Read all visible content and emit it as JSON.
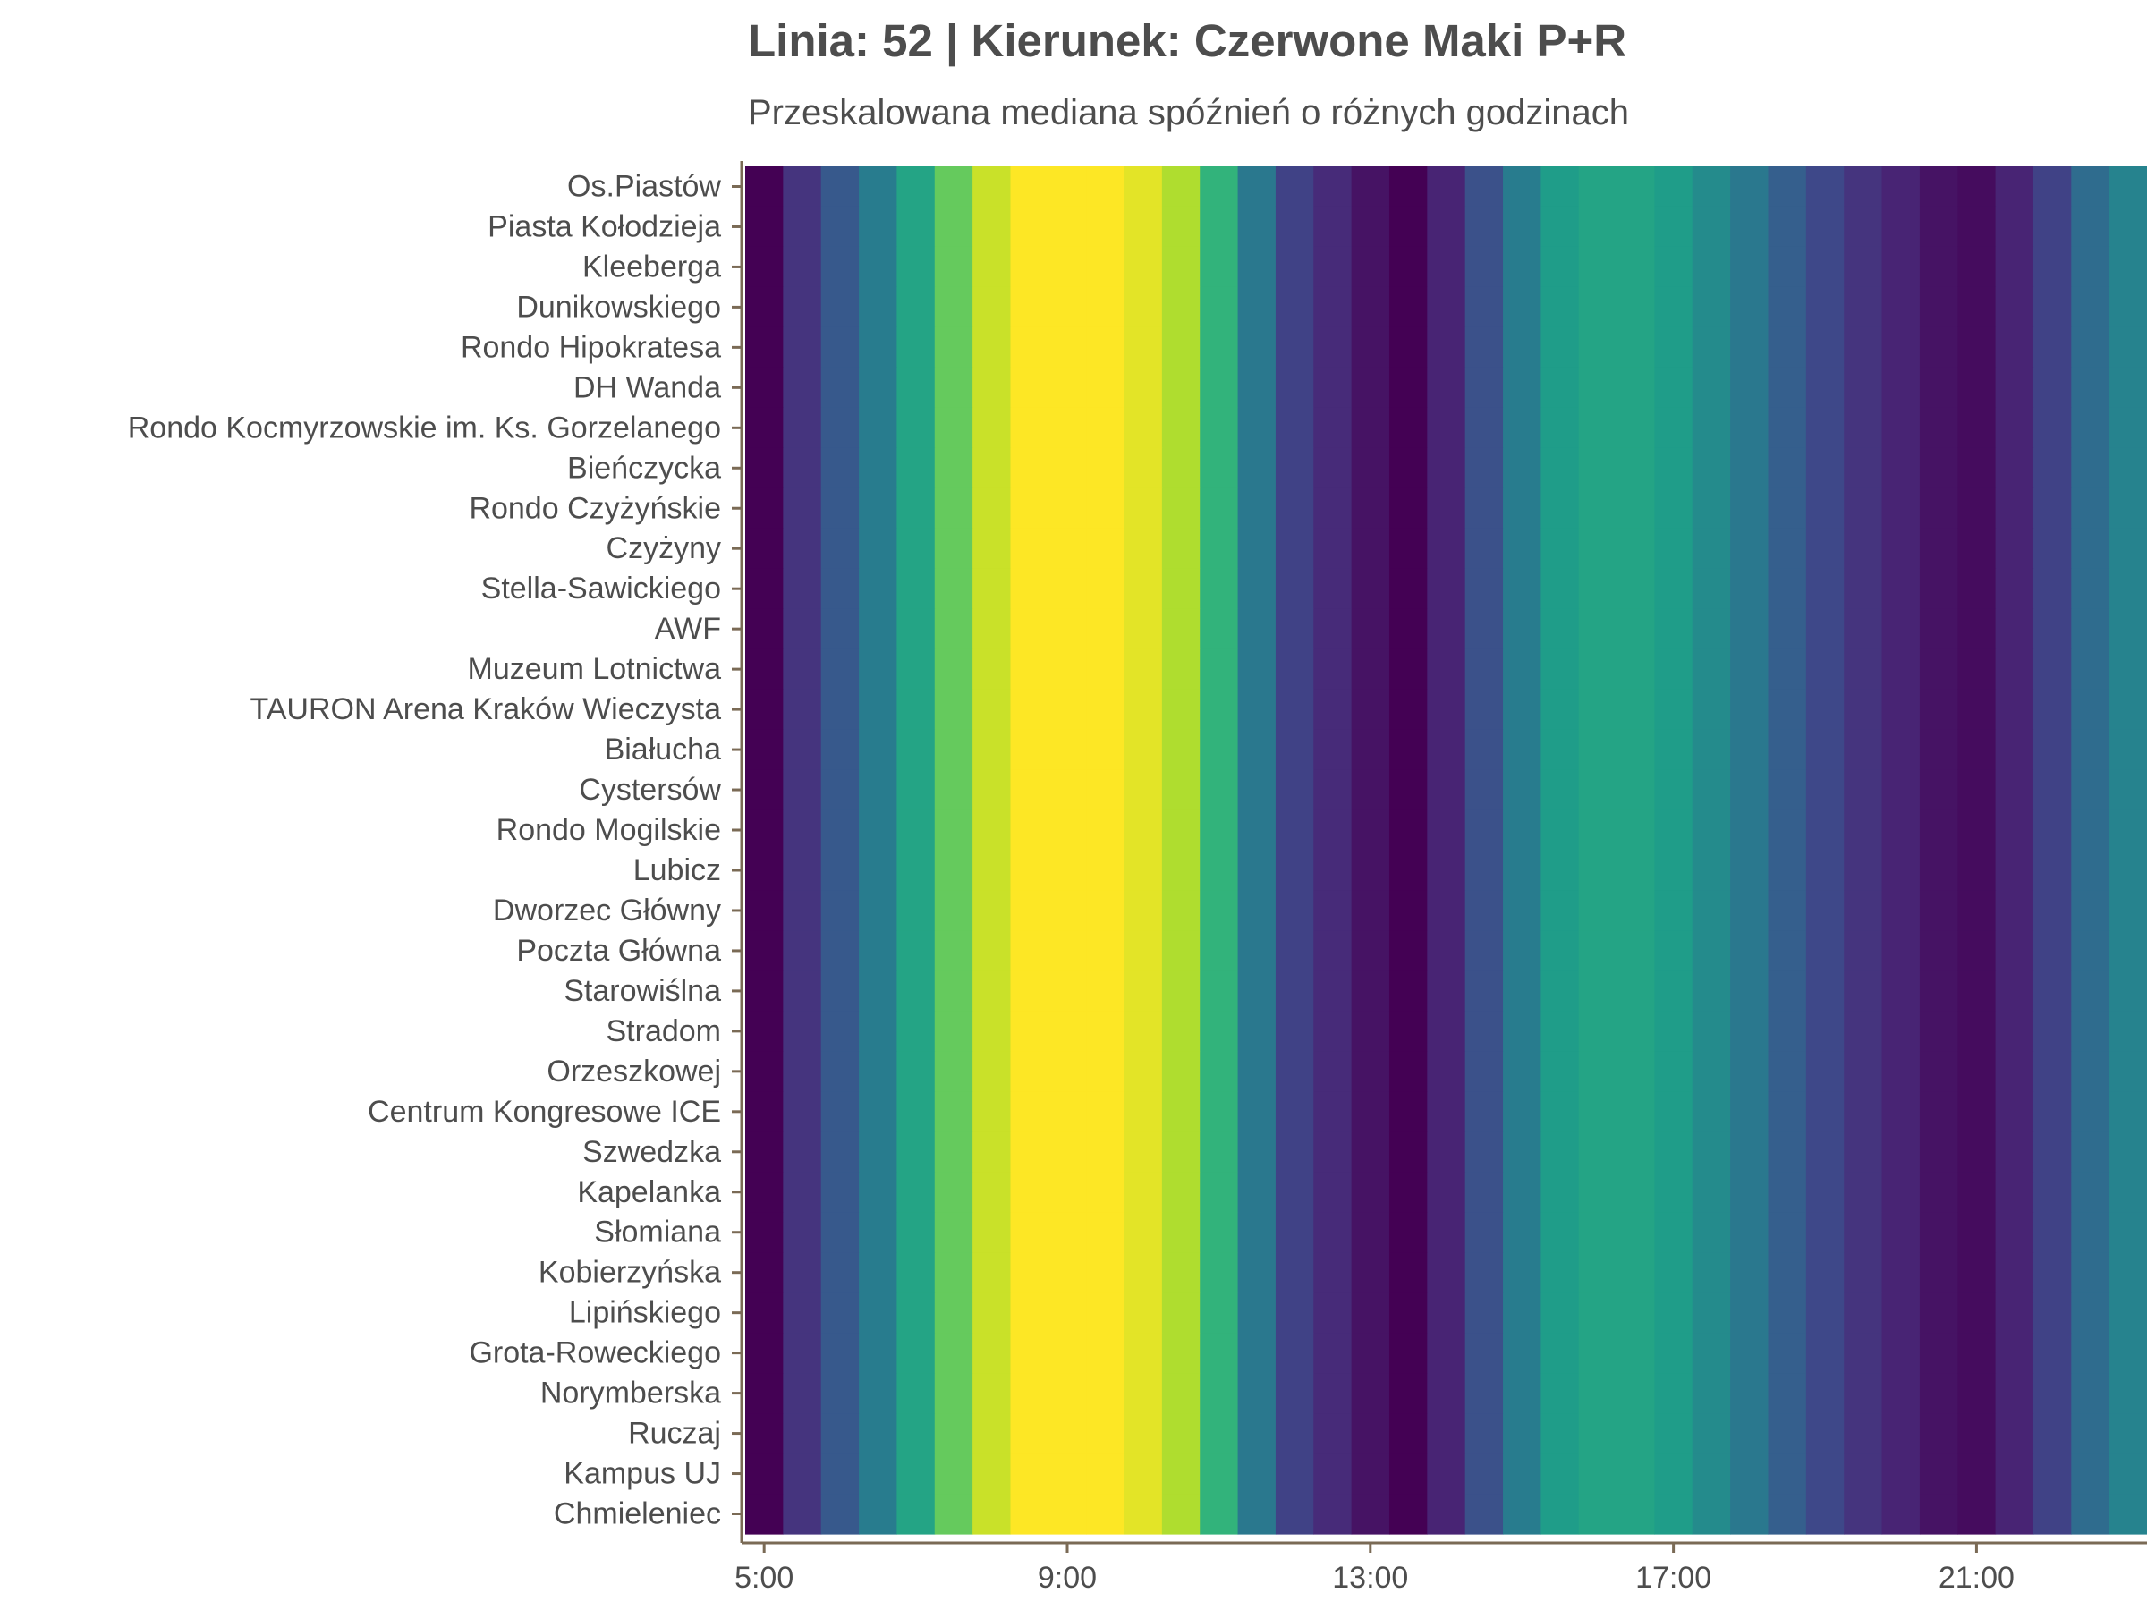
{
  "chart_data": {
    "type": "heatmap",
    "title": "Linia: 52 | Kierunek: Czerwone Maki P+R",
    "subtitle": "Przeskalowana mediana spóźnień o różnych godzinach",
    "xlabel": "",
    "ylabel": "",
    "colorscale": "viridis",
    "x": [
      5,
      5.5,
      6,
      6.5,
      7,
      7.5,
      8,
      8.5,
      9,
      9.5,
      10,
      10.5,
      11,
      11.5,
      12,
      12.5,
      13,
      13.5,
      14,
      14.5,
      15,
      15.5,
      16,
      16.5,
      17,
      17.5,
      18,
      18.5,
      19,
      19.5,
      20,
      20.5,
      21,
      21.5,
      22,
      22.5,
      23
    ],
    "x_ticks": [
      5,
      9,
      13,
      17,
      21
    ],
    "x_tick_labels": [
      "5:00",
      "9:00",
      "13:00",
      "17:00",
      "21:00"
    ],
    "stops": [
      "Os.Piastów",
      "Piasta Kołodzieja",
      "Kleeberga",
      "Dunikowskiego",
      "Rondo Hipokratesa",
      "DH Wanda",
      "Rondo Kocmyrzowskie im. Ks. Gorzelanego",
      "Bieńczycka",
      "Rondo Czyżyńskie",
      "Czyżyny",
      "Stella-Sawickiego",
      "AWF",
      "Muzeum Lotnictwa",
      "TAURON Arena Kraków Wieczysta",
      "Białucha",
      "Cystersów",
      "Rondo Mogilskie",
      "Lubicz",
      "Dworzec Główny",
      "Poczta Główna",
      "Starowiślna",
      "Stradom",
      "Orzeszkowej",
      "Centrum Kongresowe ICE",
      "Szwedzka",
      "Kapelanka",
      "Słomiana",
      "Kobierzyńska",
      "Lipińskiego",
      "Grota-Roweckiego",
      "Norymberska",
      "Ruczaj",
      "Kampus UJ",
      "Chmieleniec"
    ],
    "values": [
      [
        0.0,
        0.15,
        0.28,
        0.42,
        0.58,
        0.76,
        0.92,
        1.0,
        1.0,
        1.0,
        0.96,
        0.88,
        0.65,
        0.4,
        0.2,
        0.12,
        0.05,
        0.0,
        0.1,
        0.25,
        0.42,
        0.55,
        0.58,
        0.58,
        0.55,
        0.48,
        0.4,
        0.3,
        0.22,
        0.15,
        0.1,
        0.05,
        0.03,
        0.1,
        0.2,
        0.35,
        0.45
      ],
      [
        0.0,
        0.15,
        0.28,
        0.42,
        0.58,
        0.76,
        0.92,
        1.0,
        1.0,
        1.0,
        0.96,
        0.88,
        0.65,
        0.4,
        0.2,
        0.12,
        0.05,
        0.0,
        0.1,
        0.25,
        0.42,
        0.55,
        0.58,
        0.58,
        0.55,
        0.48,
        0.4,
        0.3,
        0.22,
        0.15,
        0.1,
        0.05,
        0.03,
        0.1,
        0.2,
        0.35,
        0.45
      ],
      [
        0.0,
        0.15,
        0.28,
        0.42,
        0.58,
        0.76,
        0.92,
        1.0,
        1.0,
        1.0,
        0.96,
        0.88,
        0.65,
        0.4,
        0.2,
        0.12,
        0.05,
        0.0,
        0.1,
        0.25,
        0.42,
        0.55,
        0.58,
        0.58,
        0.55,
        0.48,
        0.4,
        0.3,
        0.22,
        0.15,
        0.1,
        0.05,
        0.03,
        0.1,
        0.2,
        0.35,
        0.45
      ],
      [
        0.0,
        0.15,
        0.28,
        0.42,
        0.58,
        0.76,
        0.92,
        1.0,
        1.0,
        1.0,
        0.96,
        0.88,
        0.65,
        0.4,
        0.2,
        0.12,
        0.05,
        0.0,
        0.1,
        0.25,
        0.42,
        0.55,
        0.58,
        0.58,
        0.55,
        0.48,
        0.4,
        0.3,
        0.22,
        0.15,
        0.1,
        0.05,
        0.03,
        0.1,
        0.2,
        0.35,
        0.45
      ],
      [
        0.0,
        0.15,
        0.28,
        0.42,
        0.58,
        0.76,
        0.92,
        1.0,
        1.0,
        1.0,
        0.96,
        0.88,
        0.65,
        0.4,
        0.2,
        0.12,
        0.05,
        0.0,
        0.1,
        0.25,
        0.42,
        0.55,
        0.58,
        0.58,
        0.55,
        0.48,
        0.4,
        0.3,
        0.22,
        0.15,
        0.1,
        0.05,
        0.03,
        0.1,
        0.2,
        0.35,
        0.45
      ],
      [
        0.0,
        0.15,
        0.28,
        0.42,
        0.58,
        0.76,
        0.92,
        1.0,
        1.0,
        1.0,
        0.96,
        0.88,
        0.65,
        0.4,
        0.2,
        0.12,
        0.05,
        0.0,
        0.1,
        0.25,
        0.42,
        0.55,
        0.58,
        0.58,
        0.55,
        0.48,
        0.4,
        0.3,
        0.22,
        0.15,
        0.1,
        0.05,
        0.03,
        0.1,
        0.2,
        0.35,
        0.45
      ],
      [
        0.0,
        0.15,
        0.28,
        0.42,
        0.58,
        0.76,
        0.92,
        1.0,
        1.0,
        1.0,
        0.96,
        0.88,
        0.65,
        0.4,
        0.2,
        0.12,
        0.05,
        0.0,
        0.1,
        0.25,
        0.42,
        0.55,
        0.58,
        0.58,
        0.55,
        0.48,
        0.4,
        0.3,
        0.22,
        0.15,
        0.1,
        0.05,
        0.03,
        0.1,
        0.2,
        0.35,
        0.45
      ],
      [
        0.0,
        0.15,
        0.28,
        0.42,
        0.58,
        0.76,
        0.92,
        1.0,
        1.0,
        1.0,
        0.96,
        0.88,
        0.65,
        0.4,
        0.2,
        0.12,
        0.05,
        0.0,
        0.1,
        0.25,
        0.42,
        0.55,
        0.58,
        0.58,
        0.55,
        0.48,
        0.4,
        0.3,
        0.22,
        0.15,
        0.1,
        0.05,
        0.03,
        0.1,
        0.2,
        0.35,
        0.45
      ],
      [
        0.0,
        0.15,
        0.28,
        0.42,
        0.58,
        0.76,
        0.92,
        1.0,
        1.0,
        1.0,
        0.96,
        0.88,
        0.65,
        0.4,
        0.2,
        0.12,
        0.05,
        0.0,
        0.1,
        0.25,
        0.42,
        0.55,
        0.58,
        0.58,
        0.55,
        0.48,
        0.4,
        0.3,
        0.22,
        0.15,
        0.1,
        0.05,
        0.03,
        0.1,
        0.2,
        0.35,
        0.45
      ],
      [
        0.0,
        0.15,
        0.28,
        0.42,
        0.58,
        0.76,
        0.92,
        1.0,
        1.0,
        1.0,
        0.96,
        0.88,
        0.65,
        0.4,
        0.2,
        0.12,
        0.05,
        0.0,
        0.1,
        0.25,
        0.42,
        0.55,
        0.58,
        0.58,
        0.55,
        0.48,
        0.4,
        0.3,
        0.22,
        0.15,
        0.1,
        0.05,
        0.03,
        0.1,
        0.2,
        0.35,
        0.45
      ],
      [
        0.0,
        0.15,
        0.28,
        0.42,
        0.58,
        0.76,
        0.92,
        1.0,
        1.0,
        1.0,
        0.96,
        0.88,
        0.65,
        0.4,
        0.2,
        0.12,
        0.05,
        0.0,
        0.1,
        0.25,
        0.42,
        0.55,
        0.58,
        0.58,
        0.55,
        0.48,
        0.4,
        0.3,
        0.22,
        0.15,
        0.1,
        0.05,
        0.03,
        0.1,
        0.2,
        0.35,
        0.45
      ],
      [
        0.0,
        0.15,
        0.28,
        0.42,
        0.58,
        0.76,
        0.92,
        1.0,
        1.0,
        1.0,
        0.96,
        0.88,
        0.65,
        0.4,
        0.2,
        0.12,
        0.05,
        0.0,
        0.1,
        0.25,
        0.42,
        0.55,
        0.58,
        0.58,
        0.55,
        0.48,
        0.4,
        0.3,
        0.22,
        0.15,
        0.1,
        0.05,
        0.03,
        0.1,
        0.2,
        0.35,
        0.45
      ],
      [
        0.0,
        0.15,
        0.28,
        0.42,
        0.58,
        0.76,
        0.92,
        1.0,
        1.0,
        1.0,
        0.96,
        0.88,
        0.65,
        0.4,
        0.2,
        0.12,
        0.05,
        0.0,
        0.1,
        0.25,
        0.42,
        0.55,
        0.58,
        0.58,
        0.55,
        0.48,
        0.4,
        0.3,
        0.22,
        0.15,
        0.1,
        0.05,
        0.03,
        0.1,
        0.2,
        0.35,
        0.45
      ],
      [
        0.0,
        0.15,
        0.28,
        0.42,
        0.58,
        0.76,
        0.92,
        1.0,
        1.0,
        1.0,
        0.96,
        0.88,
        0.65,
        0.4,
        0.2,
        0.12,
        0.05,
        0.0,
        0.1,
        0.25,
        0.42,
        0.55,
        0.58,
        0.58,
        0.55,
        0.48,
        0.4,
        0.3,
        0.22,
        0.15,
        0.1,
        0.05,
        0.03,
        0.1,
        0.2,
        0.35,
        0.45
      ],
      [
        0.0,
        0.15,
        0.28,
        0.42,
        0.58,
        0.76,
        0.92,
        1.0,
        1.0,
        1.0,
        0.96,
        0.88,
        0.65,
        0.4,
        0.2,
        0.12,
        0.05,
        0.0,
        0.1,
        0.25,
        0.42,
        0.55,
        0.58,
        0.58,
        0.55,
        0.48,
        0.4,
        0.3,
        0.22,
        0.15,
        0.1,
        0.05,
        0.03,
        0.1,
        0.2,
        0.35,
        0.45
      ],
      [
        0.0,
        0.15,
        0.28,
        0.42,
        0.58,
        0.76,
        0.92,
        1.0,
        1.0,
        1.0,
        0.96,
        0.88,
        0.65,
        0.4,
        0.2,
        0.12,
        0.05,
        0.0,
        0.1,
        0.25,
        0.42,
        0.55,
        0.58,
        0.58,
        0.55,
        0.48,
        0.4,
        0.3,
        0.22,
        0.15,
        0.1,
        0.05,
        0.03,
        0.1,
        0.2,
        0.35,
        0.45
      ],
      [
        0.0,
        0.15,
        0.28,
        0.42,
        0.58,
        0.76,
        0.92,
        1.0,
        1.0,
        1.0,
        0.96,
        0.88,
        0.65,
        0.4,
        0.2,
        0.12,
        0.05,
        0.0,
        0.1,
        0.25,
        0.42,
        0.55,
        0.58,
        0.58,
        0.55,
        0.48,
        0.4,
        0.3,
        0.22,
        0.15,
        0.1,
        0.05,
        0.03,
        0.1,
        0.2,
        0.35,
        0.45
      ],
      [
        0.0,
        0.15,
        0.28,
        0.42,
        0.58,
        0.76,
        0.92,
        1.0,
        1.0,
        1.0,
        0.96,
        0.88,
        0.65,
        0.4,
        0.2,
        0.12,
        0.05,
        0.0,
        0.1,
        0.25,
        0.42,
        0.55,
        0.58,
        0.58,
        0.55,
        0.48,
        0.4,
        0.3,
        0.22,
        0.15,
        0.1,
        0.05,
        0.03,
        0.1,
        0.2,
        0.35,
        0.45
      ],
      [
        0.0,
        0.15,
        0.28,
        0.42,
        0.58,
        0.76,
        0.92,
        1.0,
        1.0,
        1.0,
        0.96,
        0.88,
        0.65,
        0.4,
        0.2,
        0.12,
        0.05,
        0.0,
        0.1,
        0.25,
        0.42,
        0.55,
        0.58,
        0.58,
        0.55,
        0.48,
        0.4,
        0.3,
        0.22,
        0.15,
        0.1,
        0.05,
        0.03,
        0.1,
        0.2,
        0.35,
        0.45
      ],
      [
        0.0,
        0.15,
        0.28,
        0.42,
        0.58,
        0.76,
        0.92,
        1.0,
        1.0,
        1.0,
        0.96,
        0.88,
        0.65,
        0.4,
        0.2,
        0.12,
        0.05,
        0.0,
        0.1,
        0.25,
        0.42,
        0.55,
        0.58,
        0.58,
        0.55,
        0.48,
        0.4,
        0.3,
        0.22,
        0.15,
        0.1,
        0.05,
        0.03,
        0.1,
        0.2,
        0.35,
        0.45
      ],
      [
        0.0,
        0.15,
        0.28,
        0.42,
        0.58,
        0.76,
        0.92,
        1.0,
        1.0,
        1.0,
        0.96,
        0.88,
        0.65,
        0.4,
        0.2,
        0.12,
        0.05,
        0.0,
        0.1,
        0.25,
        0.42,
        0.55,
        0.58,
        0.58,
        0.55,
        0.48,
        0.4,
        0.3,
        0.22,
        0.15,
        0.1,
        0.05,
        0.03,
        0.1,
        0.2,
        0.35,
        0.45
      ],
      [
        0.0,
        0.15,
        0.28,
        0.42,
        0.58,
        0.76,
        0.92,
        1.0,
        1.0,
        1.0,
        0.96,
        0.88,
        0.65,
        0.4,
        0.2,
        0.12,
        0.05,
        0.0,
        0.1,
        0.25,
        0.42,
        0.55,
        0.58,
        0.58,
        0.55,
        0.48,
        0.4,
        0.3,
        0.22,
        0.15,
        0.1,
        0.05,
        0.03,
        0.1,
        0.2,
        0.35,
        0.45
      ],
      [
        0.0,
        0.15,
        0.28,
        0.42,
        0.58,
        0.76,
        0.92,
        1.0,
        1.0,
        1.0,
        0.96,
        0.88,
        0.65,
        0.4,
        0.2,
        0.12,
        0.05,
        0.0,
        0.1,
        0.25,
        0.42,
        0.55,
        0.58,
        0.58,
        0.55,
        0.48,
        0.4,
        0.3,
        0.22,
        0.15,
        0.1,
        0.05,
        0.03,
        0.1,
        0.2,
        0.35,
        0.45
      ],
      [
        0.0,
        0.15,
        0.28,
        0.42,
        0.58,
        0.76,
        0.92,
        1.0,
        1.0,
        1.0,
        0.96,
        0.88,
        0.65,
        0.4,
        0.2,
        0.12,
        0.05,
        0.0,
        0.1,
        0.25,
        0.42,
        0.55,
        0.58,
        0.58,
        0.55,
        0.48,
        0.4,
        0.3,
        0.22,
        0.15,
        0.1,
        0.05,
        0.03,
        0.1,
        0.2,
        0.35,
        0.45
      ],
      [
        0.0,
        0.15,
        0.28,
        0.42,
        0.58,
        0.76,
        0.92,
        1.0,
        1.0,
        1.0,
        0.96,
        0.88,
        0.65,
        0.4,
        0.2,
        0.12,
        0.05,
        0.0,
        0.1,
        0.25,
        0.42,
        0.55,
        0.58,
        0.58,
        0.55,
        0.48,
        0.4,
        0.3,
        0.22,
        0.15,
        0.1,
        0.05,
        0.03,
        0.1,
        0.2,
        0.35,
        0.45
      ],
      [
        0.0,
        0.15,
        0.28,
        0.42,
        0.58,
        0.76,
        0.92,
        1.0,
        1.0,
        1.0,
        0.96,
        0.88,
        0.65,
        0.4,
        0.2,
        0.12,
        0.05,
        0.0,
        0.1,
        0.25,
        0.42,
        0.55,
        0.58,
        0.58,
        0.55,
        0.48,
        0.4,
        0.3,
        0.22,
        0.15,
        0.1,
        0.05,
        0.03,
        0.1,
        0.2,
        0.35,
        0.45
      ],
      [
        0.0,
        0.15,
        0.28,
        0.42,
        0.58,
        0.76,
        0.92,
        1.0,
        1.0,
        1.0,
        0.96,
        0.88,
        0.65,
        0.4,
        0.2,
        0.12,
        0.05,
        0.0,
        0.1,
        0.25,
        0.42,
        0.55,
        0.58,
        0.58,
        0.55,
        0.48,
        0.4,
        0.3,
        0.22,
        0.15,
        0.1,
        0.05,
        0.03,
        0.1,
        0.2,
        0.35,
        0.45
      ],
      [
        0.0,
        0.15,
        0.28,
        0.42,
        0.58,
        0.76,
        0.92,
        1.0,
        1.0,
        1.0,
        0.96,
        0.88,
        0.65,
        0.4,
        0.2,
        0.12,
        0.05,
        0.0,
        0.1,
        0.25,
        0.42,
        0.55,
        0.58,
        0.58,
        0.55,
        0.48,
        0.4,
        0.3,
        0.22,
        0.15,
        0.1,
        0.05,
        0.03,
        0.1,
        0.2,
        0.35,
        0.45
      ],
      [
        0.0,
        0.15,
        0.28,
        0.42,
        0.58,
        0.76,
        0.92,
        1.0,
        1.0,
        1.0,
        0.96,
        0.88,
        0.65,
        0.4,
        0.2,
        0.12,
        0.05,
        0.0,
        0.1,
        0.25,
        0.42,
        0.55,
        0.58,
        0.58,
        0.55,
        0.48,
        0.4,
        0.3,
        0.22,
        0.15,
        0.1,
        0.05,
        0.03,
        0.1,
        0.2,
        0.35,
        0.45
      ],
      [
        0.0,
        0.15,
        0.28,
        0.42,
        0.58,
        0.76,
        0.92,
        1.0,
        1.0,
        1.0,
        0.96,
        0.88,
        0.65,
        0.4,
        0.2,
        0.12,
        0.05,
        0.0,
        0.1,
        0.25,
        0.42,
        0.55,
        0.58,
        0.58,
        0.55,
        0.48,
        0.4,
        0.3,
        0.22,
        0.15,
        0.1,
        0.05,
        0.03,
        0.1,
        0.2,
        0.35,
        0.45
      ],
      [
        0.0,
        0.15,
        0.28,
        0.42,
        0.58,
        0.76,
        0.92,
        1.0,
        1.0,
        1.0,
        0.96,
        0.88,
        0.65,
        0.4,
        0.2,
        0.12,
        0.05,
        0.0,
        0.1,
        0.25,
        0.42,
        0.55,
        0.58,
        0.58,
        0.55,
        0.48,
        0.4,
        0.3,
        0.22,
        0.15,
        0.1,
        0.05,
        0.03,
        0.1,
        0.2,
        0.35,
        0.45
      ],
      [
        0.0,
        0.15,
        0.28,
        0.42,
        0.58,
        0.76,
        0.92,
        1.0,
        1.0,
        1.0,
        0.96,
        0.88,
        0.65,
        0.4,
        0.2,
        0.12,
        0.05,
        0.0,
        0.1,
        0.25,
        0.42,
        0.55,
        0.58,
        0.58,
        0.55,
        0.48,
        0.4,
        0.3,
        0.22,
        0.15,
        0.1,
        0.05,
        0.03,
        0.1,
        0.2,
        0.35,
        0.45
      ],
      [
        0.0,
        0.15,
        0.28,
        0.42,
        0.58,
        0.76,
        0.92,
        1.0,
        1.0,
        1.0,
        0.96,
        0.88,
        0.65,
        0.4,
        0.2,
        0.12,
        0.05,
        0.0,
        0.1,
        0.25,
        0.42,
        0.55,
        0.58,
        0.58,
        0.55,
        0.48,
        0.4,
        0.3,
        0.22,
        0.15,
        0.1,
        0.05,
        0.03,
        0.1,
        0.2,
        0.35,
        0.45
      ],
      [
        0.0,
        0.15,
        0.28,
        0.42,
        0.58,
        0.76,
        0.92,
        1.0,
        1.0,
        1.0,
        0.96,
        0.88,
        0.65,
        0.4,
        0.2,
        0.12,
        0.05,
        0.0,
        0.1,
        0.25,
        0.42,
        0.55,
        0.58,
        0.58,
        0.55,
        0.48,
        0.4,
        0.3,
        0.22,
        0.15,
        0.1,
        0.05,
        0.03,
        0.1,
        0.2,
        0.35,
        0.45
      ]
    ]
  }
}
